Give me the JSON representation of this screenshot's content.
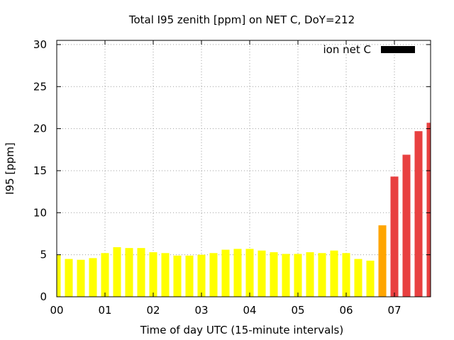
{
  "chart_data": {
    "type": "bar",
    "title": "Total I95 zenith [ppm] on NET C, DoY=212",
    "xlabel": "Time of day UTC (15-minute intervals)",
    "ylabel": "I95 [ppm]",
    "ylim": [
      0,
      30.5
    ],
    "yticks": [
      0,
      5,
      10,
      15,
      20,
      25,
      30
    ],
    "xlim": [
      0,
      7.75
    ],
    "xticks": [
      {
        "value": 0,
        "label": "00"
      },
      {
        "value": 1,
        "label": "01"
      },
      {
        "value": 2,
        "label": "02"
      },
      {
        "value": 3,
        "label": "03"
      },
      {
        "value": 4,
        "label": "04"
      },
      {
        "value": 5,
        "label": "05"
      },
      {
        "value": 6,
        "label": "06"
      },
      {
        "value": 7,
        "label": "07"
      }
    ],
    "grid": true,
    "legend": {
      "label": "ion net C",
      "color": "#000000",
      "position": "top-right"
    },
    "level_colors": {
      "low": "#ffff00",
      "elevated": "#ffa500",
      "high": "#e84040"
    },
    "series": [
      {
        "x": [
          0,
          0.25,
          0.5,
          0.75,
          1,
          1.25,
          1.5,
          1.75,
          2,
          2.25,
          2.5,
          2.75,
          3,
          3.25,
          3.5,
          3.75,
          4,
          4.25,
          4.5,
          4.75,
          5,
          5.25,
          5.5,
          5.75,
          6,
          6.25,
          6.5,
          6.75,
          7,
          7.25,
          7.5,
          7.75
        ],
        "values": [
          5.0,
          4.5,
          4.4,
          4.6,
          5.2,
          5.9,
          5.8,
          5.8,
          5.3,
          5.2,
          4.9,
          4.9,
          5.0,
          5.2,
          5.6,
          5.7,
          5.7,
          5.5,
          5.3,
          5.1,
          5.1,
          5.3,
          5.2,
          5.5,
          5.2,
          4.5,
          4.3,
          8.5,
          14.3,
          16.9,
          19.7,
          20.7
        ],
        "levels": [
          "low",
          "low",
          "low",
          "low",
          "low",
          "low",
          "low",
          "low",
          "low",
          "low",
          "low",
          "low",
          "low",
          "low",
          "low",
          "low",
          "low",
          "low",
          "low",
          "low",
          "low",
          "low",
          "low",
          "low",
          "low",
          "low",
          "low",
          "elevated",
          "high",
          "high",
          "high",
          "high"
        ]
      }
    ]
  }
}
